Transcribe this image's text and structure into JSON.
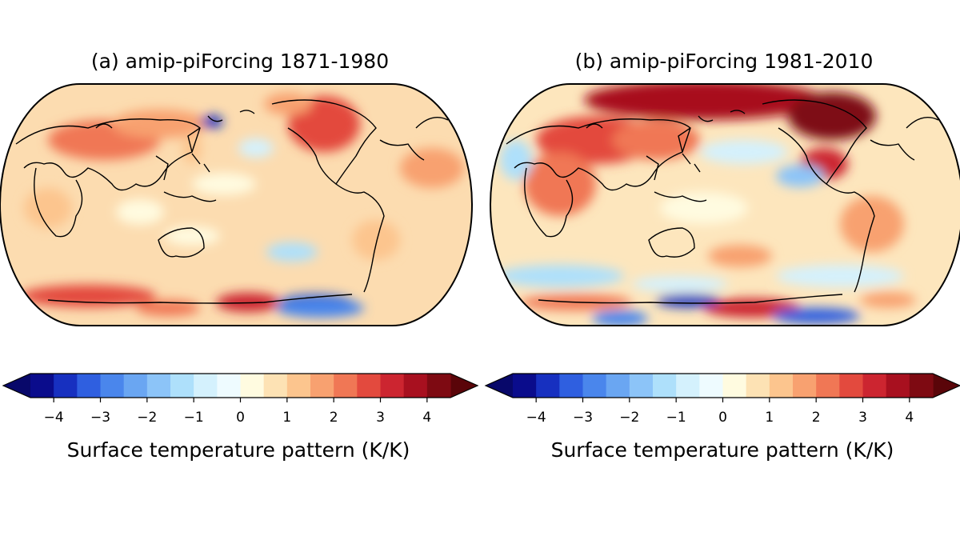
{
  "panels": [
    {
      "label": "(a) amip-piForcing 1871-1980",
      "colorbar_label": "Surface temperature pattern (K/K)"
    },
    {
      "label": "(b) amip-piForcing 1981-2010",
      "colorbar_label": "Surface temperature pattern (K/K)"
    }
  ],
  "colorbar": {
    "ticks": [
      "−4",
      "−3",
      "−2",
      "−1",
      "0",
      "1",
      "2",
      "3",
      "4"
    ],
    "min": -4.5,
    "max": 4.5,
    "step": 0.5,
    "extend": "both",
    "colors": [
      "#0a0c8c",
      "#1730c0",
      "#2f5fe0",
      "#4a86ec",
      "#6aa6f2",
      "#8cc4f8",
      "#aee0fb",
      "#d4f1fd",
      "#eefbff",
      "#fffbe0",
      "#fde2b4",
      "#fcc58e",
      "#f8a170",
      "#f07755",
      "#e34a3e",
      "#cc2530",
      "#a8101f",
      "#7e0a12"
    ],
    "under_color": "#08086a",
    "over_color": "#5a0509"
  }
}
